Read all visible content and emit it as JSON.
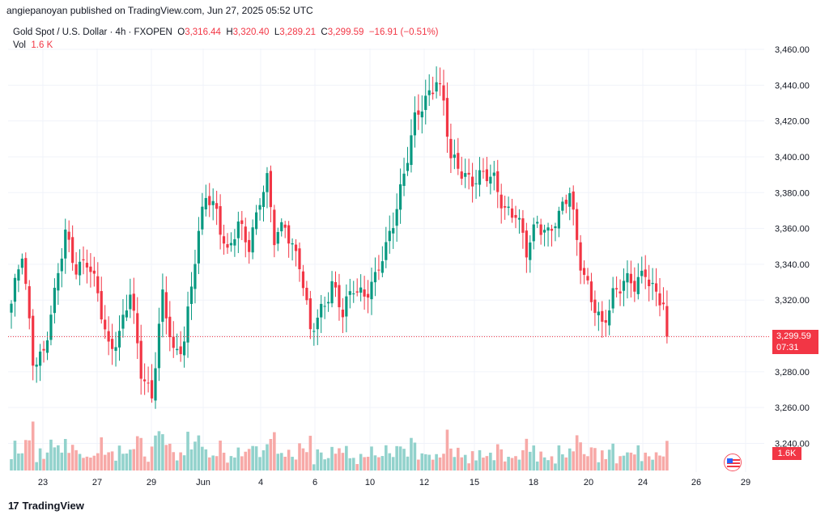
{
  "header": {
    "published_text": "angiepanoyan published on TradingView.com, Jun 27, 2025 05:52 UTC"
  },
  "legend": {
    "symbol": "Gold Spot / U.S. Dollar · 4h · FXOPEN",
    "o_label": "O",
    "o_value": "3,316.44",
    "h_label": "H",
    "h_value": "3,320.40",
    "l_label": "L",
    "l_value": "3,289.21",
    "c_label": "C",
    "c_value": "3,299.59",
    "change": "−16.91 (−0.51%)",
    "vol_label": "Vol",
    "vol_value": "1.6 K"
  },
  "price_badge": {
    "price": "3,299.59",
    "countdown": "07:31"
  },
  "vol_badge": "1.6K",
  "footer": {
    "brand": "TradingView",
    "logo_text": "17"
  },
  "colors": {
    "up": "#089981",
    "down": "#f23645",
    "up_vol": "#92d2cc",
    "down_vol": "#f7a9a7",
    "grid": "#f0f3fa"
  },
  "chart_data": {
    "type": "candlestick",
    "symbol": "Gold Spot / U.S. Dollar",
    "timeframe": "4h",
    "y_axis_ticks": [
      "3,460.00",
      "3,440.00",
      "3,420.00",
      "3,400.00",
      "3,380.00",
      "3,360.00",
      "3,340.00",
      "3,320.00",
      "3,300.00",
      "3,280.00",
      "3,260.00",
      "3,240.00"
    ],
    "x_axis_ticks": [
      "23",
      "27",
      "29",
      "Jun",
      "4",
      "6",
      "10",
      "12",
      "15",
      "18",
      "20",
      "24",
      "26",
      "29"
    ],
    "ylim": [
      3235,
      3468
    ],
    "last_price": 3299.59,
    "anchors": [
      [
        0,
        3318
      ],
      [
        3,
        3344
      ],
      [
        6,
        3288
      ],
      [
        9,
        3292
      ],
      [
        12,
        3320
      ],
      [
        15,
        3358
      ],
      [
        18,
        3340
      ],
      [
        21,
        3340
      ],
      [
        24,
        3322
      ],
      [
        27,
        3296
      ],
      [
        30,
        3300
      ],
      [
        33,
        3322
      ],
      [
        36,
        3282
      ],
      [
        39,
        3268
      ],
      [
        42,
        3320
      ],
      [
        45,
        3290
      ],
      [
        48,
        3300
      ],
      [
        51,
        3342
      ],
      [
        54,
        3378
      ],
      [
        57,
        3372
      ],
      [
        60,
        3345
      ],
      [
        63,
        3360
      ],
      [
        66,
        3352
      ],
      [
        69,
        3378
      ],
      [
        71,
        3385
      ],
      [
        73,
        3352
      ],
      [
        76,
        3364
      ],
      [
        80,
        3340
      ],
      [
        83,
        3300
      ],
      [
        86,
        3316
      ],
      [
        89,
        3330
      ],
      [
        92,
        3310
      ],
      [
        95,
        3328
      ],
      [
        98,
        3325
      ],
      [
        101,
        3330
      ],
      [
        104,
        3348
      ],
      [
        107,
        3375
      ],
      [
        110,
        3400
      ],
      [
        112,
        3418
      ],
      [
        115,
        3432
      ],
      [
        118,
        3446
      ],
      [
        120,
        3430
      ],
      [
        122,
        3396
      ],
      [
        125,
        3392
      ],
      [
        128,
        3389
      ],
      [
        131,
        3388
      ],
      [
        134,
        3386
      ],
      [
        137,
        3373
      ],
      [
        140,
        3368
      ],
      [
        143,
        3345
      ],
      [
        146,
        3366
      ],
      [
        149,
        3358
      ],
      [
        152,
        3364
      ],
      [
        155,
        3382
      ],
      [
        158,
        3343
      ],
      [
        161,
        3318
      ],
      [
        164,
        3304
      ],
      [
        167,
        3326
      ],
      [
        170,
        3330
      ],
      [
        173,
        3326
      ],
      [
        176,
        3338
      ],
      [
        179,
        3324
      ],
      [
        181,
        3316
      ],
      [
        182,
        3299.59
      ]
    ],
    "volume_units": "K (relative)"
  }
}
